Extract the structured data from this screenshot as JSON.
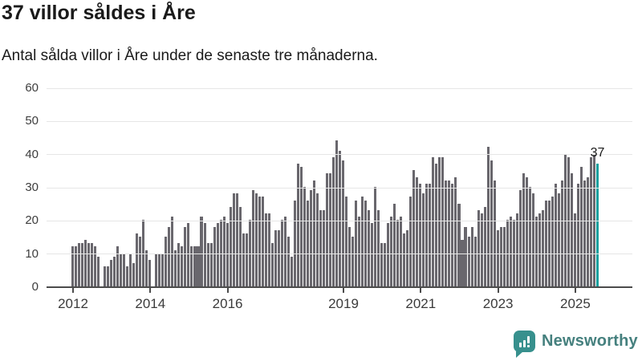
{
  "header": {
    "title": "37 villor såldes i Åre",
    "subtitle": "Antal sålda villor i Åre under de senaste tre månaderna."
  },
  "chart_data": {
    "type": "bar",
    "title": "37 villor såldes i Åre",
    "subtitle": "Antal sålda villor i Åre under de senaste tre månaderna.",
    "xlabel": "",
    "ylabel": "",
    "ylim": [
      0,
      60
    ],
    "yticks": [
      0,
      10,
      20,
      30,
      40,
      50,
      60
    ],
    "xtick_years": [
      2012,
      2014,
      2016,
      2019,
      2021,
      2023,
      2025
    ],
    "start_year": 2012,
    "frequency": "monthly",
    "grid": true,
    "legend": false,
    "bar_color": "#69676d",
    "highlight_color": "#12a09e",
    "annotation_label": "37",
    "highlight_last_value": 37,
    "values": [
      12,
      12,
      13,
      13,
      14,
      13,
      13,
      12,
      9,
      0,
      6,
      6,
      8,
      9,
      12,
      10,
      10,
      6,
      10,
      7,
      16,
      15,
      20,
      11,
      8,
      0,
      10,
      10,
      10,
      15,
      18,
      21,
      11,
      13,
      12,
      18,
      19,
      12,
      12,
      12,
      21,
      19,
      13,
      13,
      18,
      19,
      20,
      21,
      19,
      24,
      28,
      28,
      24,
      16,
      16,
      20,
      29,
      28,
      27,
      27,
      22,
      22,
      13,
      17,
      17,
      20,
      21,
      15,
      9,
      26,
      37,
      36,
      30,
      26,
      29,
      32,
      28,
      23,
      23,
      34,
      34,
      39,
      44,
      41,
      38,
      27,
      18,
      15,
      26,
      21,
      27,
      26,
      23,
      19,
      30,
      23,
      13,
      13,
      19,
      21,
      25,
      20,
      21,
      16,
      17,
      27,
      35,
      33,
      31,
      28,
      31,
      31,
      39,
      37,
      39,
      39,
      32,
      32,
      31,
      33,
      25,
      14,
      18,
      15,
      18,
      15,
      23,
      22,
      24,
      42,
      38,
      32,
      17,
      18,
      18,
      20,
      21,
      20,
      22,
      29,
      34,
      33,
      30,
      28,
      21,
      22,
      23,
      26,
      26,
      27,
      31,
      28,
      32,
      40,
      39,
      34,
      22,
      31,
      36,
      32,
      33,
      39,
      40,
      37
    ]
  },
  "footer": {
    "brand": "Newsworthy",
    "logo_icon": "newsworthy-speech-bubble-chart-icon",
    "brand_color": "#45807e",
    "icon_color": "#37908d"
  }
}
